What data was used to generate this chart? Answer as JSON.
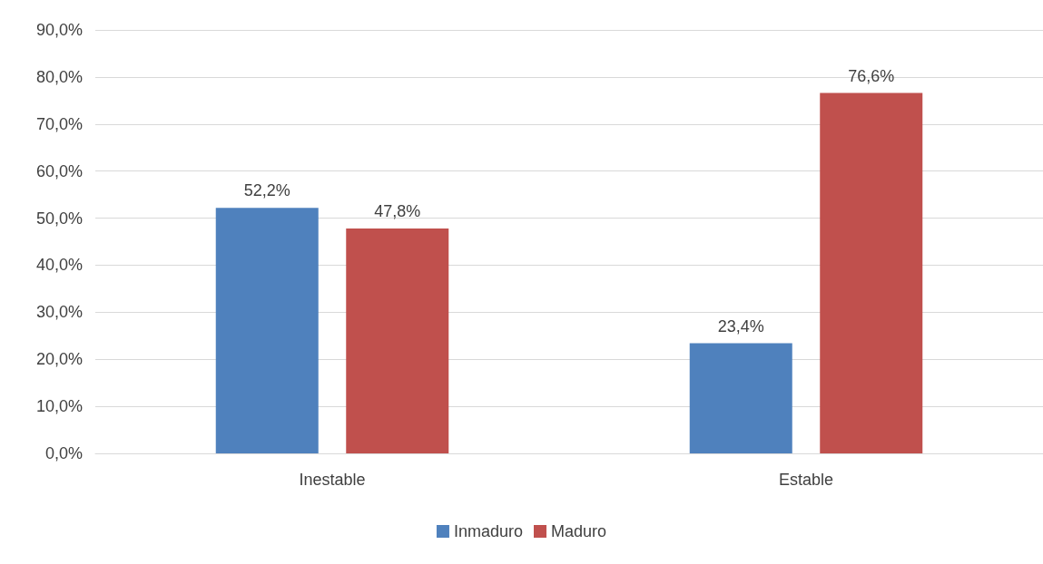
{
  "chart_data": {
    "type": "bar",
    "categories": [
      "Inestable",
      "Estable"
    ],
    "series": [
      {
        "name": "Inmaduro",
        "color": "#4f81bd",
        "values": [
          52.2,
          23.4
        ],
        "value_labels": [
          "52,2%",
          "23,4%"
        ]
      },
      {
        "name": "Maduro",
        "color": "#c0504d",
        "values": [
          47.8,
          76.6
        ],
        "value_labels": [
          "47,8%",
          "76,6%"
        ]
      }
    ],
    "ylim": [
      0,
      90
    ],
    "yticks": [
      {
        "value": 0,
        "label": "0,0%"
      },
      {
        "value": 10,
        "label": "10,0%"
      },
      {
        "value": 20,
        "label": "20,0%"
      },
      {
        "value": 30,
        "label": "30,0%"
      },
      {
        "value": 40,
        "label": "40,0%"
      },
      {
        "value": 50,
        "label": "50,0%"
      },
      {
        "value": 60,
        "label": "60,0%"
      },
      {
        "value": 70,
        "label": "70,0%"
      },
      {
        "value": 80,
        "label": "80,0%"
      },
      {
        "value": 90,
        "label": "90,0%"
      }
    ],
    "grid": "y",
    "legend": "bottom"
  }
}
